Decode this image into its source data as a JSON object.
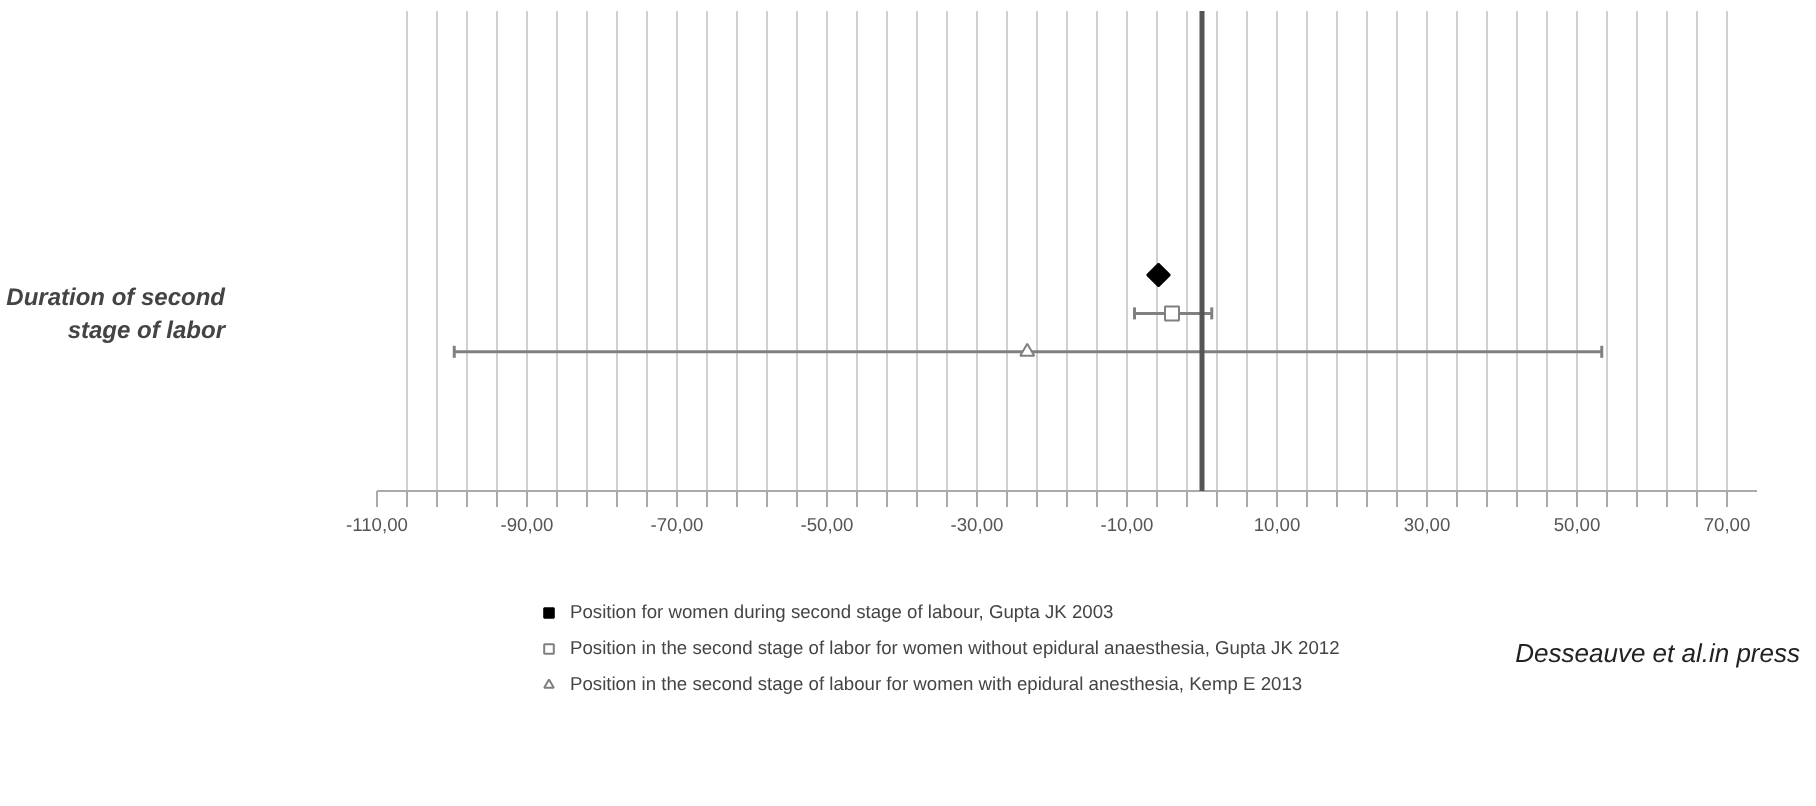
{
  "chart_data": {
    "type": "scatter",
    "orientation": "horizontal",
    "categories": [
      "Duration of second stage of labor"
    ],
    "series": [
      {
        "name": "Position for women during second stage of labour, Gupta JK 2003",
        "color": "#000000",
        "marker": "diamond",
        "values": [
          -5.8
        ]
      },
      {
        "name": "Position in the second stage of labor for women without epidural anaesthesia, Gupta JK 2012",
        "color": "#808080",
        "marker": "square",
        "values": [
          -4
        ],
        "errors": [
          [
            -9,
            1.3
          ]
        ]
      },
      {
        "name": "Position in the second stage of labour for women with epidural anesthesia, Kemp E 2013",
        "color": "#808080",
        "marker": "triangle",
        "values": [
          -23.3
        ],
        "errors": [
          [
            -99.7,
            53.3
          ]
        ]
      }
    ],
    "xlim": [
      -110,
      74
    ],
    "xticks": [
      {
        "value": -110,
        "label": "-110,00"
      },
      {
        "value": -106,
        "label": null
      },
      {
        "value": -102,
        "label": null
      },
      {
        "value": -98,
        "label": null
      },
      {
        "value": -94,
        "label": null
      },
      {
        "value": -90,
        "label": "-90,00"
      },
      {
        "value": -86,
        "label": null
      },
      {
        "value": -82,
        "label": null
      },
      {
        "value": -78,
        "label": null
      },
      {
        "value": -74,
        "label": null
      },
      {
        "value": -70,
        "label": "-70,00"
      },
      {
        "value": -66,
        "label": null
      },
      {
        "value": -62,
        "label": null
      },
      {
        "value": -58,
        "label": null
      },
      {
        "value": -54,
        "label": null
      },
      {
        "value": -50,
        "label": "-50,00"
      },
      {
        "value": -46,
        "label": null
      },
      {
        "value": -42,
        "label": null
      },
      {
        "value": -38,
        "label": null
      },
      {
        "value": -34,
        "label": null
      },
      {
        "value": -30,
        "label": "-30,00"
      },
      {
        "value": -26,
        "label": null
      },
      {
        "value": -22,
        "label": null
      },
      {
        "value": -18,
        "label": null
      },
      {
        "value": -14,
        "label": null
      },
      {
        "value": -10,
        "label": "-10,00"
      },
      {
        "value": -6,
        "label": null
      },
      {
        "value": -2,
        "label": null
      },
      {
        "value": 2,
        "label": null
      },
      {
        "value": 6,
        "label": null
      },
      {
        "value": 10,
        "label": "10,00"
      },
      {
        "value": 14,
        "label": null
      },
      {
        "value": 18,
        "label": null
      },
      {
        "value": 22,
        "label": null
      },
      {
        "value": 26,
        "label": null
      },
      {
        "value": 30,
        "label": "30,00"
      },
      {
        "value": 34,
        "label": null
      },
      {
        "value": 38,
        "label": null
      },
      {
        "value": 42,
        "label": null
      },
      {
        "value": 46,
        "label": null
      },
      {
        "value": 50,
        "label": "50,00"
      },
      {
        "value": 54,
        "label": null
      },
      {
        "value": 58,
        "label": null
      },
      {
        "value": 62,
        "label": null
      },
      {
        "value": 66,
        "label": null
      },
      {
        "value": 70,
        "label": "70,00"
      }
    ],
    "ref_lines": [
      {
        "axis": "x",
        "value": 0,
        "color": "#555555"
      }
    ],
    "grid": "x",
    "legend": "bottom left",
    "annotations": [
      "Desseauve et al.in press"
    ]
  }
}
